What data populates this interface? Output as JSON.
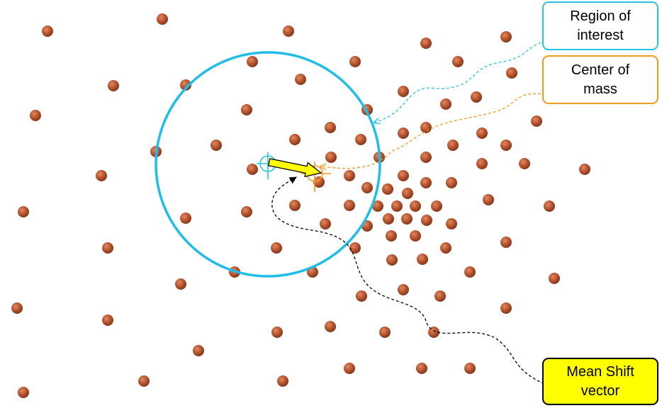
{
  "labels": {
    "region_of_interest": "Region of\ninterest",
    "center_of_mass": "Center of\nmass",
    "mean_shift_vector": "Mean Shift\nvector"
  },
  "colors": {
    "region": "#1fbde8",
    "center": "#f0931c",
    "vector_fill": "#ffff00",
    "vector_stroke": "#000000",
    "points": "#b5522c",
    "background": "#ffffff"
  },
  "icons": {
    "region_center": "crosshair-icon",
    "mass_center": "crosshair-icon",
    "shift_arrow": "arrow-icon"
  }
}
